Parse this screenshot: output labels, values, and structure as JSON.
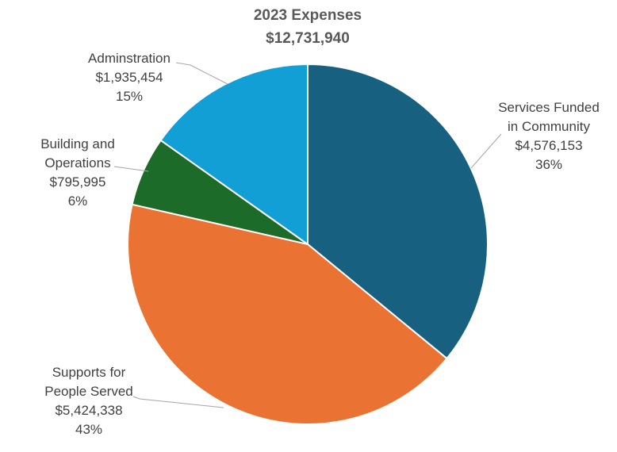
{
  "chart_data": {
    "type": "pie",
    "title": "2023 Expenses",
    "subtitle": "$12,731,940",
    "start_angle_deg": 0,
    "direction": "clockwise",
    "slices": [
      {
        "lines": [
          "Services Funded",
          "in Community"
        ],
        "value_label": "$4,576,153",
        "value": 4576153,
        "percent_label": "36%",
        "color": "#17607f"
      },
      {
        "lines": [
          "Supports for",
          "People Served"
        ],
        "value_label": "$5,424,338",
        "value": 5424338,
        "percent_label": "43%",
        "color": "#ea7232"
      },
      {
        "lines": [
          "Building and",
          "Operations"
        ],
        "value_label": "$795,995",
        "value": 795995,
        "percent_label": "6%",
        "color": "#1c6b28"
      },
      {
        "lines": [
          "Adminstration"
        ],
        "value_label": "$1,935,454",
        "value": 1935454,
        "percent_label": "15%",
        "color": "#129fd6"
      }
    ]
  }
}
